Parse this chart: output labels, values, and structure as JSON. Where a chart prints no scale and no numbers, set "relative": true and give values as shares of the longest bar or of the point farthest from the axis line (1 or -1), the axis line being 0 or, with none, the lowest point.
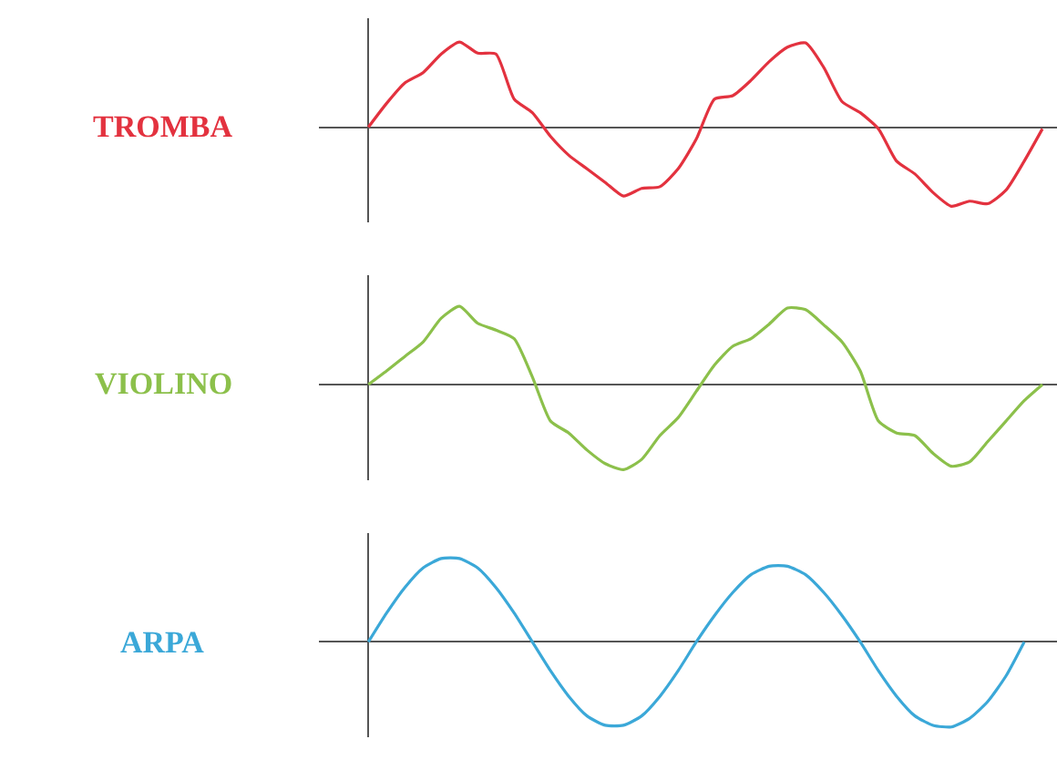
{
  "chart_data": [
    {
      "type": "line",
      "relative": true,
      "categories": [
        null,
        null,
        null,
        null,
        null,
        null,
        null,
        null,
        null,
        null,
        null,
        null,
        null,
        null,
        null,
        null,
        null,
        null,
        null,
        null,
        null,
        null,
        null,
        null,
        null,
        null,
        null,
        null,
        null,
        null,
        null,
        null,
        null,
        null,
        null,
        null,
        null,
        null
      ],
      "series": [
        {
          "name": "TROMBA",
          "color": "#e3323f",
          "values": [
            0,
            0.28,
            0.52,
            0.64,
            0.86,
            1.0,
            0.87,
            0.86,
            0.33,
            0.17,
            -0.11,
            -0.33,
            -0.49,
            -0.65,
            -0.81,
            -0.72,
            -0.7,
            -0.49,
            -0.14,
            0.33,
            0.37,
            0.55,
            0.77,
            0.94,
            0.99,
            0.7,
            0.3,
            0.17,
            -0.02,
            -0.4,
            -0.55,
            -0.77,
            -0.93,
            -0.87,
            -0.9,
            -0.74,
            -0.4,
            -0.02
          ]
        }
      ]
    },
    {
      "type": "line",
      "relative": true,
      "categories": [
        null,
        null,
        null,
        null,
        null,
        null,
        null,
        null,
        null,
        null,
        null,
        null,
        null,
        null,
        null,
        null,
        null,
        null,
        null,
        null,
        null,
        null,
        null,
        null,
        null,
        null,
        null,
        null,
        null,
        null,
        null,
        null,
        null,
        null,
        null,
        null,
        null,
        null
      ],
      "series": [
        {
          "name": "VIOLINO",
          "color": "#8cc04b",
          "values": [
            0,
            0.16,
            0.33,
            0.5,
            0.78,
            0.92,
            0.72,
            0.64,
            0.54,
            0.09,
            -0.43,
            -0.57,
            -0.77,
            -0.93,
            -1.0,
            -0.88,
            -0.6,
            -0.39,
            -0.08,
            0.23,
            0.45,
            0.54,
            0.71,
            0.9,
            0.88,
            0.7,
            0.5,
            0.16,
            -0.43,
            -0.57,
            -0.6,
            -0.81,
            -0.96,
            -0.91,
            -0.67,
            -0.43,
            -0.19,
            0
          ]
        }
      ]
    },
    {
      "type": "line",
      "relative": true,
      "categories": [
        null,
        null,
        null,
        null,
        null,
        null,
        null,
        null,
        null,
        null,
        null,
        null,
        null,
        null,
        null,
        null,
        null,
        null,
        null,
        null,
        null,
        null,
        null,
        null,
        null,
        null,
        null,
        null,
        null,
        null,
        null,
        null,
        null,
        null,
        null,
        null,
        null,
        null
      ],
      "series": [
        {
          "name": "ARPA",
          "color": "#3ba8d8",
          "values": [
            0,
            0.34,
            0.64,
            0.87,
            0.98,
            0.98,
            0.87,
            0.64,
            0.34,
            0,
            -0.34,
            -0.64,
            -0.87,
            -0.98,
            -0.98,
            -0.87,
            -0.64,
            -0.34,
            0,
            0.31,
            0.58,
            0.79,
            0.89,
            0.89,
            0.79,
            0.58,
            0.31,
            0,
            -0.34,
            -0.64,
            -0.87,
            -0.98,
            -1.0,
            -0.9,
            -0.7,
            -0.4,
            0,
            null
          ]
        }
      ]
    }
  ]
}
